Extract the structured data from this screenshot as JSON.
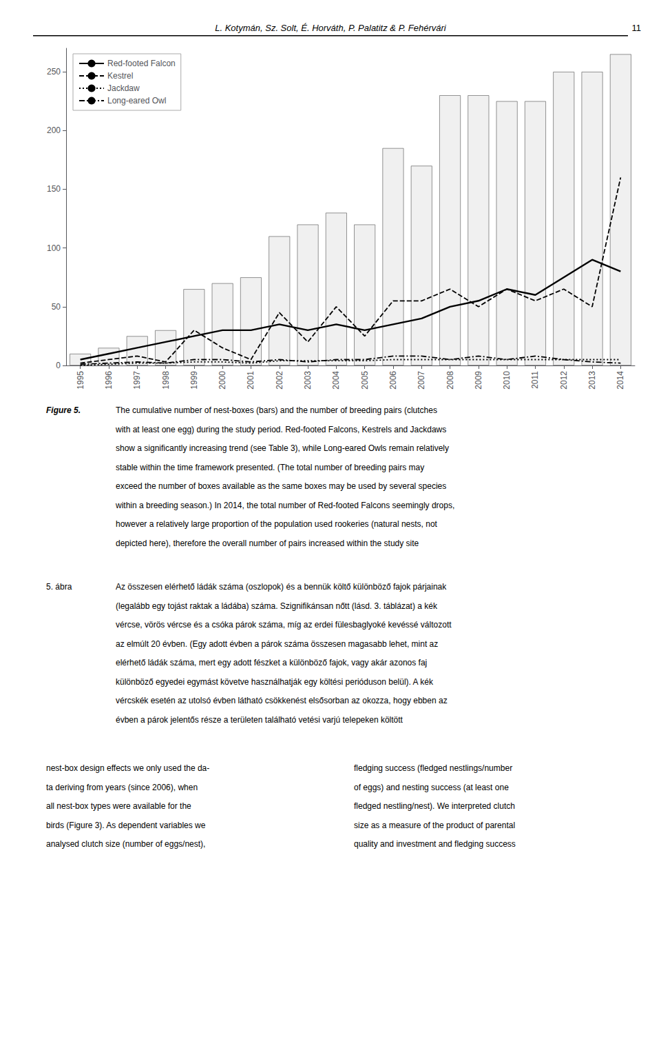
{
  "chart_data": {
    "type": "bar",
    "categories": [
      "1995",
      "1996",
      "1997",
      "1998",
      "1999",
      "2000",
      "2001",
      "2002",
      "2003",
      "2004",
      "2005",
      "2006",
      "2007",
      "2008",
      "2009",
      "2010",
      "2011",
      "2012",
      "2013",
      "2014"
    ],
    "series": [
      {
        "type": "bar",
        "color": "#f0f0f0",
        "values": [
          10,
          15,
          25,
          30,
          65,
          70,
          75,
          110,
          120,
          130,
          120,
          185,
          170,
          230,
          230,
          225,
          225,
          250,
          250,
          265
        ]
      },
      {
        "type": "line",
        "name": "Red-footed Falcon",
        "color": "#000000",
        "line_style": "solid",
        "values": [
          5,
          10,
          15,
          20,
          25,
          30,
          30,
          35,
          30,
          35,
          30,
          35,
          40,
          50,
          55,
          65,
          60,
          75,
          90,
          80
        ]
      },
      {
        "type": "line",
        "name": "Kestrel",
        "color": "#000000",
        "line_style": "dashed",
        "values": [
          2,
          5,
          8,
          3,
          30,
          15,
          5,
          45,
          20,
          50,
          25,
          55,
          55,
          65,
          50,
          65,
          55,
          65,
          50,
          160
        ]
      },
      {
        "type": "line",
        "name": "Jackdaw",
        "color": "#000000",
        "line_style": "dotted",
        "values": [
          0,
          1,
          2,
          2,
          3,
          3,
          2,
          4,
          4,
          4,
          4,
          5,
          5,
          5,
          5,
          5,
          5,
          5,
          5,
          5
        ]
      },
      {
        "type": "line",
        "name": "Long-eared Owl",
        "color": "#000000",
        "line_style": "dashdot",
        "values": [
          1,
          2,
          3,
          2,
          5,
          5,
          3,
          5,
          3,
          5,
          5,
          8,
          8,
          5,
          8,
          5,
          8,
          5,
          3,
          2
        ]
      }
    ],
    "ylim": [
      0,
      270
    ],
    "yticks": [
      0,
      50,
      100,
      150,
      200,
      250
    ],
    "grid": false,
    "legend": "upper left"
  },
  "header": "L. Kotymán, Sz. Solt, É. Horváth, P. Palatitz & P. Fehérvári",
  "page_number": "11",
  "caption_label": "Figure 5.",
  "caption": [
    "The cumulative number of nest-boxes (bars) and the number of breeding pairs (clutches",
    "with at least one egg) during the study period. Red-footed Falcons, Kestrels and Jackdaws",
    "show a significantly increasing trend (see Table 3), while Long-eared Owls remain relatively",
    "stable within the time framework presented. (The total number of breeding pairs may",
    "exceed the number of boxes available as the same boxes may be used by several species",
    "within a breeding season.) In 2014, the total number of Red-footed Falcons seemingly drops,",
    "however a relatively large proportion of the population used rookeries (natural nests, not",
    "depicted here), therefore the overall number of pairs increased within the study site"
  ],
  "caption_hu_label": "5. ábra",
  "caption_hu": [
    "Az összesen elérhető ládák száma (oszlopok) és a bennük költő különböző fajok párjainak",
    "(legalább egy tojást raktak a ládába) száma. Szignifikánsan nőtt (lásd. 3. táblázat) a kék",
    "vércse, vörös vércse és a csóka párok száma, míg az erdei fülesbaglyoké kevéssé változott",
    "az elmúlt 20 évben. (Egy adott évben a párok száma összesen magasabb lehet, mint az",
    "elérhető ládák száma, mert egy adott fészket a különböző fajok, vagy akár azonos faj",
    "különböző egyedei egymást követve használhatják egy költési perióduson belül). A kék",
    "vércskék esetén az utolsó évben látható csökkenést elsősorban az okozza, hogy ebben az",
    "évben a párok jelentős része a területen található vetési varjú telepeken költött"
  ],
  "body_columns": [
    [
      "nest-box design effects we only used the da-",
      "ta deriving from years (since 2006), when",
      "all nest-box types were available for the",
      "birds (Figure 3). As dependent variables we",
      "analysed clutch size (number of eggs/nest),"
    ],
    [
      "fledging success (fledged nestlings/number",
      "of eggs) and nesting success (at least one",
      "fledged nestling/nest). We interpreted clutch",
      "size as a measure of the product of parental",
      "quality and investment and fledging success"
    ]
  ]
}
